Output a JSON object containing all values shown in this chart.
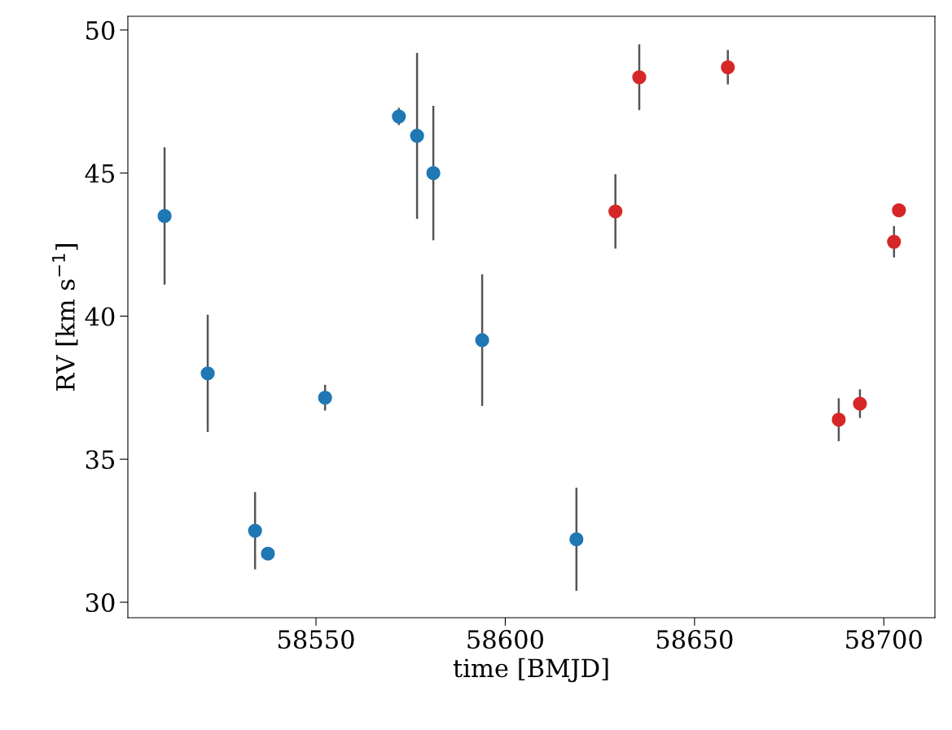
{
  "chart_data": {
    "type": "scatter",
    "xlabel": "time [BMJD]",
    "ylabel": "RV [km s$^{−1}$]",
    "xlim": [
      58500.3,
      58713.5
    ],
    "ylim": [
      29.46,
      50.48
    ],
    "xticks": [
      58550,
      58600,
      58650,
      58700
    ],
    "yticks": [
      30,
      35,
      40,
      45,
      50
    ],
    "grid": false,
    "marker": "circle",
    "series": [
      {
        "color": "#1f77b4",
        "x": [
          58510.0,
          58521.4,
          58533.9,
          58537.3,
          58552.4,
          58571.9,
          58576.7,
          58581.0,
          58593.9,
          58618.8
        ],
        "values": [
          43.5,
          38.0,
          32.5,
          31.7,
          37.15,
          46.98,
          46.3,
          45.0,
          39.16,
          32.2
        ],
        "errors": [
          2.4,
          2.05,
          1.35,
          null,
          0.45,
          0.3,
          2.9,
          2.35,
          2.3,
          1.8
        ]
      },
      {
        "color": "#d62728",
        "x": [
          58629.1,
          58635.4,
          58658.8,
          58688.1,
          58693.7,
          58702.7,
          58704.0
        ],
        "values": [
          43.66,
          48.35,
          48.7,
          36.38,
          36.94,
          42.6,
          43.7
        ],
        "errors": [
          1.3,
          1.15,
          0.6,
          0.75,
          0.5,
          0.55,
          null
        ]
      }
    ]
  }
}
